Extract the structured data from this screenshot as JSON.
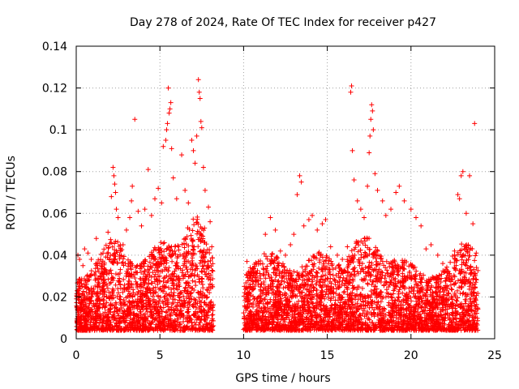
{
  "chart_data": {
    "type": "scatter",
    "title": "Day 278 of 2024, Rate Of TEC Index for receiver p427",
    "xlabel": "GPS time / hours",
    "ylabel": "ROTI / TECUs",
    "xlim": [
      0,
      25
    ],
    "ylim": [
      0,
      0.14
    ],
    "xticks": [
      0,
      5,
      10,
      15,
      20,
      25
    ],
    "xtick_labels": [
      "0",
      "5",
      "10",
      "15",
      "20",
      "25"
    ],
    "yticks": [
      0,
      0.02,
      0.04,
      0.06,
      0.08,
      0.1,
      0.12,
      0.14
    ],
    "ytick_labels": [
      "0",
      "0.02",
      "0.04",
      "0.06",
      "0.08",
      "0.1",
      "0.12",
      "0.14"
    ],
    "grid": true,
    "marker": "+",
    "series": [
      {
        "name": "ROTI",
        "color": "#ff0000",
        "points": [
          [
            0.1,
            0.04
          ],
          [
            0.2,
            0.038
          ],
          [
            0.4,
            0.035
          ],
          [
            0.5,
            0.043
          ],
          [
            0.7,
            0.041
          ],
          [
            0.9,
            0.038
          ],
          [
            1.2,
            0.048
          ],
          [
            1.4,
            0.036
          ],
          [
            1.6,
            0.041
          ],
          [
            1.9,
            0.051
          ],
          [
            2.1,
            0.068
          ],
          [
            2.2,
            0.082
          ],
          [
            2.25,
            0.078
          ],
          [
            2.3,
            0.074
          ],
          [
            2.35,
            0.07
          ],
          [
            2.4,
            0.062
          ],
          [
            2.5,
            0.058
          ],
          [
            2.8,
            0.045
          ],
          [
            3.0,
            0.052
          ],
          [
            3.2,
            0.058
          ],
          [
            3.3,
            0.066
          ],
          [
            3.35,
            0.073
          ],
          [
            3.5,
            0.105
          ],
          [
            3.7,
            0.061
          ],
          [
            3.9,
            0.054
          ],
          [
            4.1,
            0.062
          ],
          [
            4.3,
            0.081
          ],
          [
            4.5,
            0.059
          ],
          [
            4.7,
            0.067
          ],
          [
            4.9,
            0.072
          ],
          [
            5.1,
            0.065
          ],
          [
            5.2,
            0.092
          ],
          [
            5.35,
            0.095
          ],
          [
            5.4,
            0.1
          ],
          [
            5.45,
            0.103
          ],
          [
            5.5,
            0.12
          ],
          [
            5.55,
            0.108
          ],
          [
            5.6,
            0.11
          ],
          [
            5.65,
            0.113
          ],
          [
            5.7,
            0.091
          ],
          [
            5.8,
            0.077
          ],
          [
            6.0,
            0.067
          ],
          [
            6.3,
            0.088
          ],
          [
            6.5,
            0.071
          ],
          [
            6.7,
            0.065
          ],
          [
            6.9,
            0.095
          ],
          [
            7.0,
            0.09
          ],
          [
            7.1,
            0.084
          ],
          [
            7.2,
            0.097
          ],
          [
            7.3,
            0.124
          ],
          [
            7.35,
            0.118
          ],
          [
            7.4,
            0.115
          ],
          [
            7.45,
            0.104
          ],
          [
            7.5,
            0.101
          ],
          [
            7.6,
            0.082
          ],
          [
            7.7,
            0.071
          ],
          [
            7.9,
            0.063
          ],
          [
            8.0,
            0.056
          ],
          [
            8.1,
            0.044
          ],
          [
            10.2,
            0.037
          ],
          [
            10.4,
            0.034
          ],
          [
            10.7,
            0.032
          ],
          [
            11.0,
            0.036
          ],
          [
            11.3,
            0.05
          ],
          [
            11.6,
            0.058
          ],
          [
            11.9,
            0.052
          ],
          [
            12.2,
            0.042
          ],
          [
            12.5,
            0.04
          ],
          [
            12.8,
            0.045
          ],
          [
            13.0,
            0.05
          ],
          [
            13.2,
            0.069
          ],
          [
            13.35,
            0.078
          ],
          [
            13.45,
            0.075
          ],
          [
            13.6,
            0.054
          ],
          [
            13.9,
            0.057
          ],
          [
            14.1,
            0.059
          ],
          [
            14.4,
            0.052
          ],
          [
            14.7,
            0.055
          ],
          [
            14.9,
            0.057
          ],
          [
            15.2,
            0.044
          ],
          [
            15.6,
            0.04
          ],
          [
            15.9,
            0.038
          ],
          [
            16.2,
            0.044
          ],
          [
            16.4,
            0.118
          ],
          [
            16.45,
            0.121
          ],
          [
            16.5,
            0.09
          ],
          [
            16.6,
            0.076
          ],
          [
            16.8,
            0.066
          ],
          [
            17.0,
            0.062
          ],
          [
            17.2,
            0.058
          ],
          [
            17.4,
            0.073
          ],
          [
            17.5,
            0.089
          ],
          [
            17.55,
            0.097
          ],
          [
            17.6,
            0.105
          ],
          [
            17.65,
            0.112
          ],
          [
            17.7,
            0.109
          ],
          [
            17.75,
            0.1
          ],
          [
            17.85,
            0.079
          ],
          [
            18.0,
            0.071
          ],
          [
            18.3,
            0.066
          ],
          [
            18.5,
            0.059
          ],
          [
            18.8,
            0.062
          ],
          [
            19.1,
            0.07
          ],
          [
            19.3,
            0.073
          ],
          [
            19.6,
            0.066
          ],
          [
            20.0,
            0.062
          ],
          [
            20.3,
            0.058
          ],
          [
            20.6,
            0.054
          ],
          [
            20.9,
            0.043
          ],
          [
            21.2,
            0.045
          ],
          [
            21.6,
            0.04
          ],
          [
            21.9,
            0.036
          ],
          [
            22.3,
            0.029
          ],
          [
            22.6,
            0.042
          ],
          [
            22.8,
            0.069
          ],
          [
            22.9,
            0.067
          ],
          [
            23.0,
            0.078
          ],
          [
            23.1,
            0.08
          ],
          [
            23.3,
            0.06
          ],
          [
            23.5,
            0.078
          ],
          [
            23.7,
            0.055
          ],
          [
            23.8,
            0.103
          ],
          [
            23.9,
            0.041
          ]
        ]
      }
    ]
  }
}
